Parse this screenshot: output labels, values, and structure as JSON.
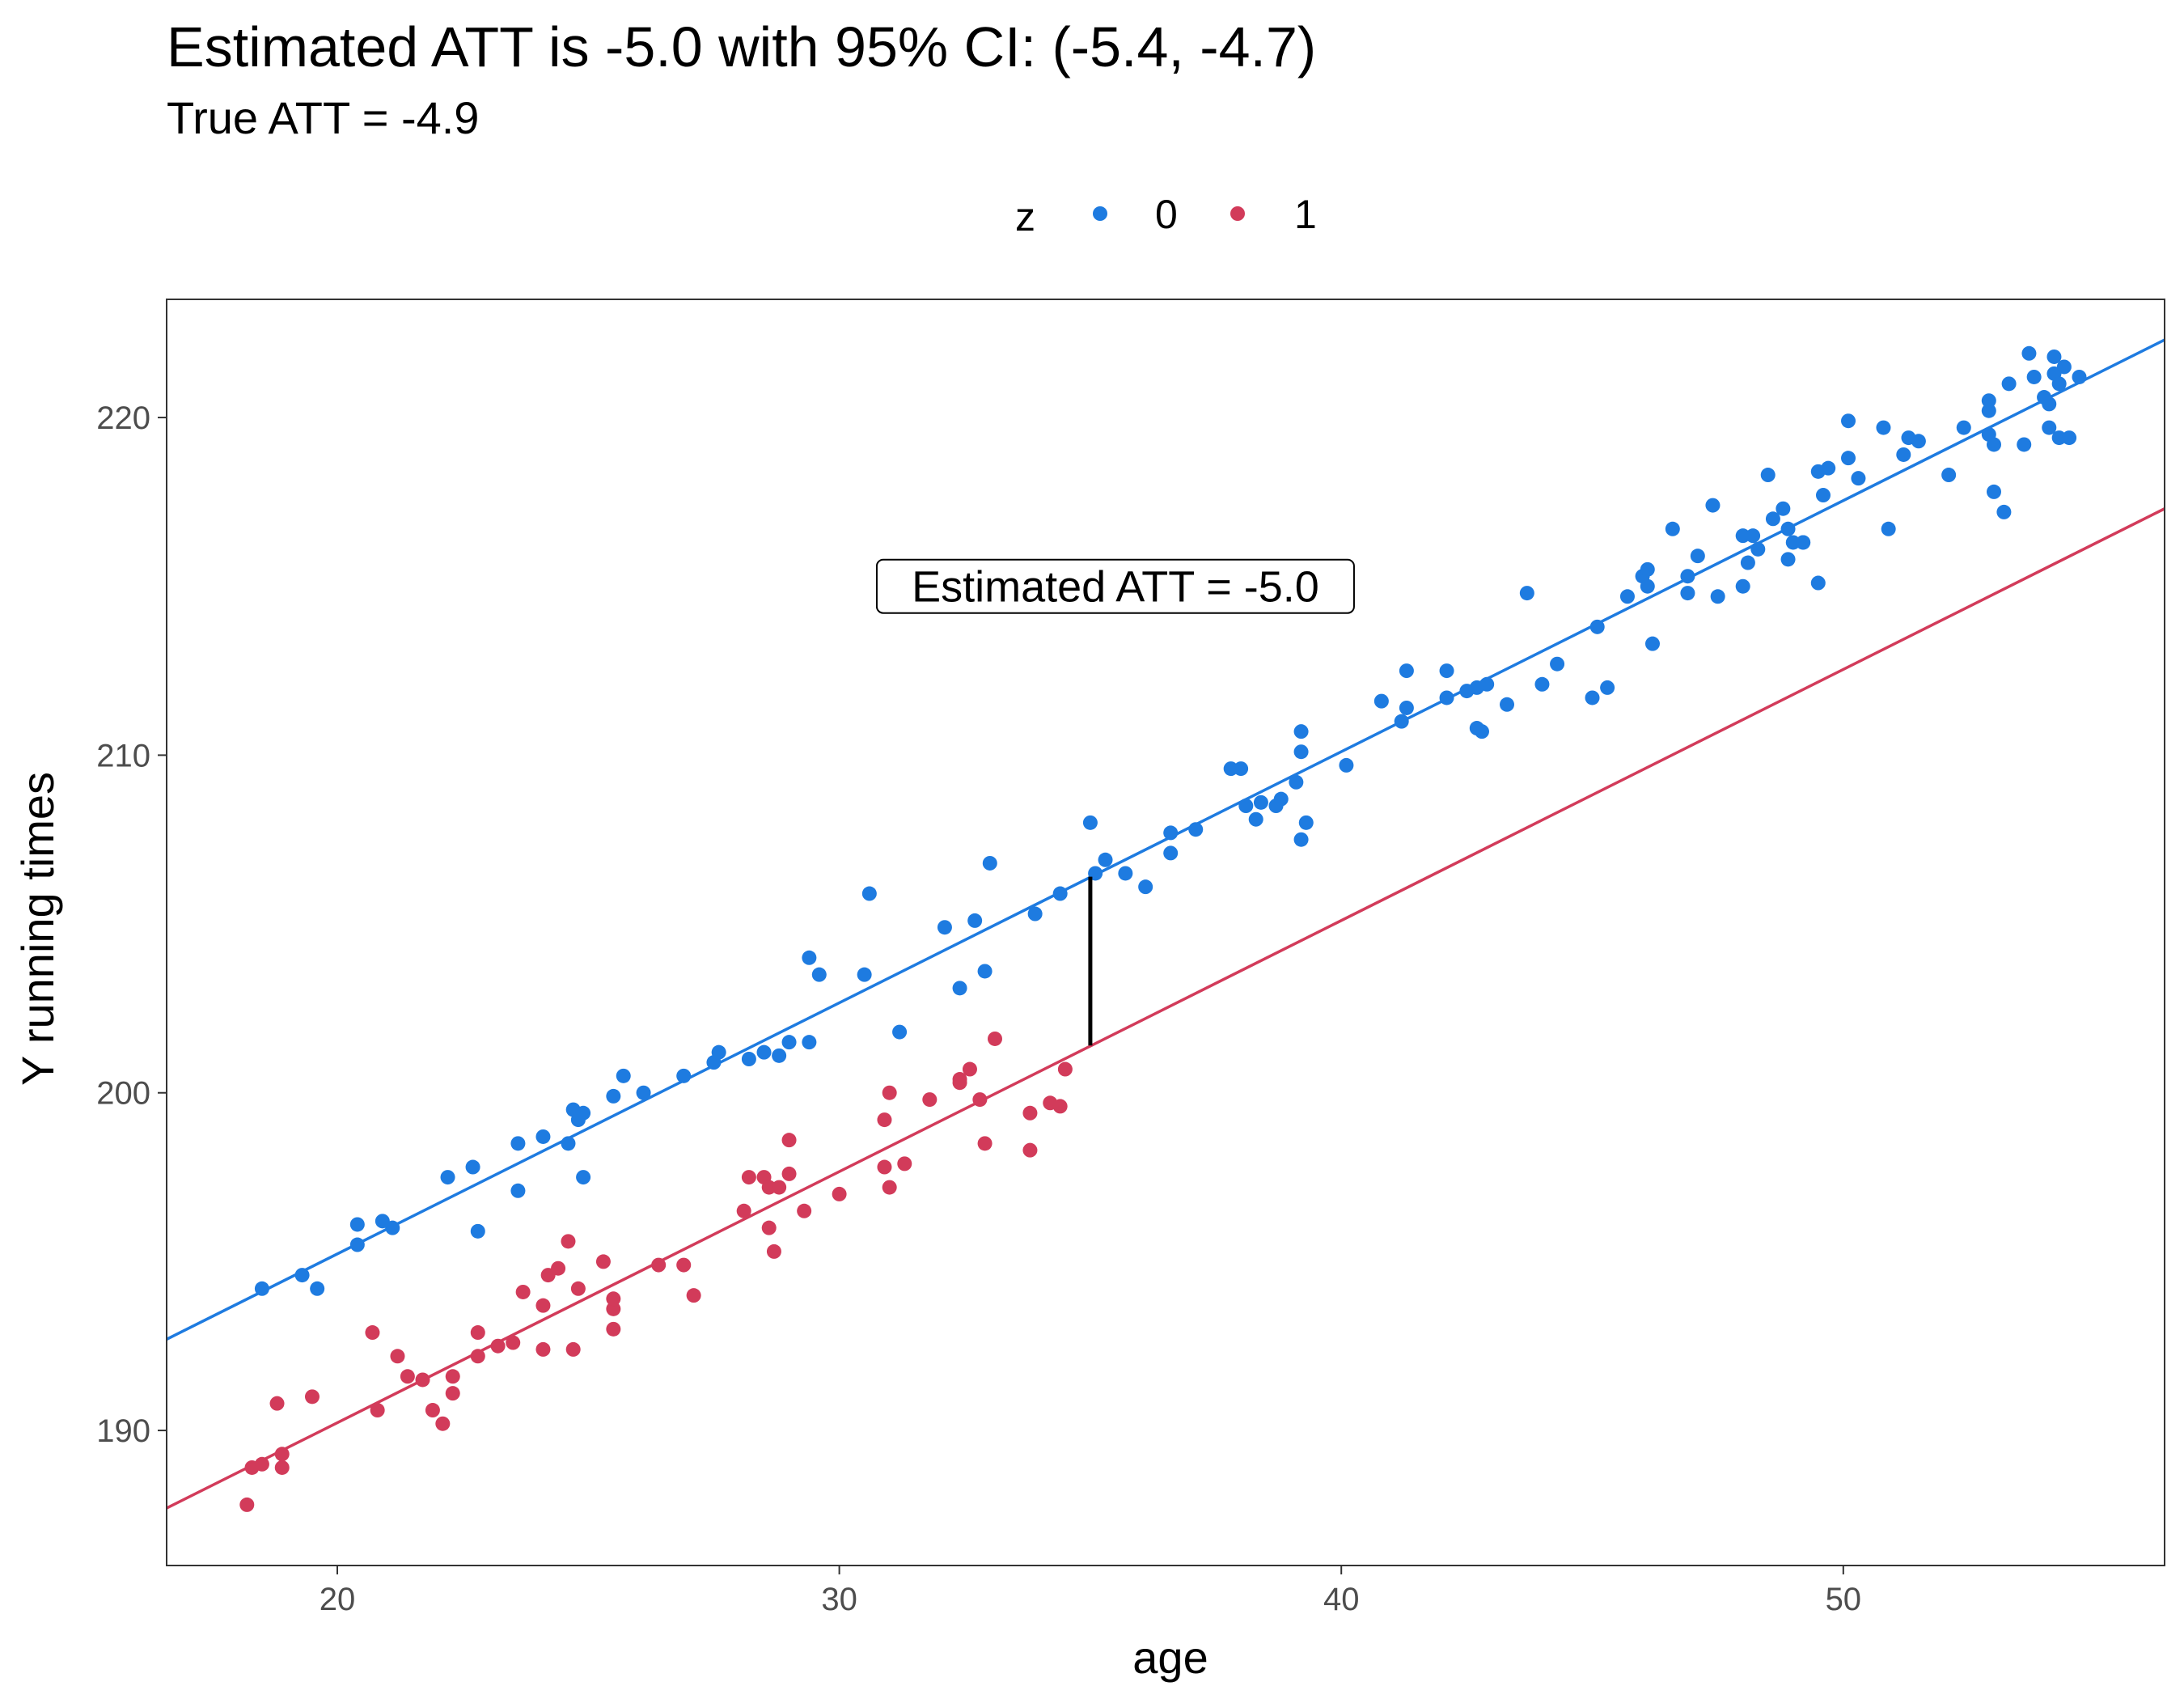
{
  "chart_data": {
    "type": "scatter",
    "title": "Estimated ATT is -5.0 with 95% CI: (-5.4, -4.7)",
    "subtitle": "True ATT = -4.9",
    "xlabel": "age",
    "ylabel": "Y running times",
    "xlim": [
      16.6,
      56.4
    ],
    "ylim": [
      186.0,
      223.5
    ],
    "xticks": [
      20,
      30,
      40,
      50
    ],
    "yticks": [
      190,
      200,
      210,
      220
    ],
    "grid": false,
    "legend": {
      "title": "z",
      "position": "top"
    },
    "series": [
      {
        "name": "0",
        "color": "#1E7BE0",
        "points": [
          [
            18.5,
            194.2
          ],
          [
            19.3,
            194.6
          ],
          [
            19.6,
            194.2
          ],
          [
            20.4,
            195.5
          ],
          [
            20.4,
            196.1
          ],
          [
            20.9,
            196.2
          ],
          [
            21.1,
            196.0
          ],
          [
            22.2,
            197.5
          ],
          [
            22.7,
            197.8
          ],
          [
            22.8,
            195.9
          ],
          [
            23.6,
            198.5
          ],
          [
            23.6,
            197.1
          ],
          [
            24.1,
            198.7
          ],
          [
            24.6,
            198.5
          ],
          [
            24.7,
            199.5
          ],
          [
            24.8,
            199.2
          ],
          [
            24.9,
            199.4
          ],
          [
            24.9,
            197.5
          ],
          [
            25.5,
            199.9
          ],
          [
            25.7,
            200.5
          ],
          [
            26.1,
            200.0
          ],
          [
            26.9,
            200.5
          ],
          [
            27.5,
            200.9
          ],
          [
            27.6,
            201.2
          ],
          [
            28.2,
            201.0
          ],
          [
            28.5,
            201.2
          ],
          [
            28.8,
            201.1
          ],
          [
            29.0,
            201.5
          ],
          [
            29.4,
            201.5
          ],
          [
            29.4,
            204.0
          ],
          [
            29.6,
            203.5
          ],
          [
            30.5,
            203.5
          ],
          [
            30.6,
            205.9
          ],
          [
            31.2,
            201.8
          ],
          [
            32.1,
            204.9
          ],
          [
            32.4,
            203.1
          ],
          [
            32.7,
            205.1
          ],
          [
            32.9,
            203.6
          ],
          [
            33.0,
            206.8
          ],
          [
            33.9,
            205.3
          ],
          [
            34.4,
            205.9
          ],
          [
            35.0,
            208.0
          ],
          [
            35.1,
            206.5
          ],
          [
            35.3,
            206.9
          ],
          [
            35.7,
            206.5
          ],
          [
            36.1,
            206.1
          ],
          [
            36.6,
            207.7
          ],
          [
            36.6,
            207.1
          ],
          [
            37.1,
            207.8
          ],
          [
            37.8,
            209.6
          ],
          [
            38.0,
            209.6
          ],
          [
            38.1,
            208.5
          ],
          [
            38.3,
            208.1
          ],
          [
            38.4,
            208.6
          ],
          [
            38.7,
            208.5
          ],
          [
            38.8,
            208.7
          ],
          [
            39.1,
            209.2
          ],
          [
            39.2,
            210.1
          ],
          [
            39.2,
            210.7
          ],
          [
            39.2,
            207.5
          ],
          [
            39.3,
            208.0
          ],
          [
            40.1,
            209.7
          ],
          [
            40.8,
            211.6
          ],
          [
            41.2,
            211.0
          ],
          [
            41.3,
            211.4
          ],
          [
            41.3,
            212.5
          ],
          [
            42.1,
            212.5
          ],
          [
            42.1,
            211.7
          ],
          [
            42.5,
            211.9
          ],
          [
            42.7,
            212.0
          ],
          [
            42.7,
            210.8
          ],
          [
            42.8,
            210.7
          ],
          [
            42.9,
            212.1
          ],
          [
            43.3,
            211.5
          ],
          [
            43.7,
            214.8
          ],
          [
            44.0,
            212.1
          ],
          [
            44.3,
            212.7
          ],
          [
            45.0,
            211.7
          ],
          [
            45.1,
            213.8
          ],
          [
            45.3,
            212.0
          ],
          [
            45.7,
            214.7
          ],
          [
            46.0,
            215.3
          ],
          [
            46.1,
            215.5
          ],
          [
            46.1,
            215.0
          ],
          [
            46.2,
            213.3
          ],
          [
            46.6,
            216.7
          ],
          [
            46.9,
            215.3
          ],
          [
            46.9,
            214.8
          ],
          [
            47.1,
            215.9
          ],
          [
            47.4,
            217.4
          ],
          [
            47.5,
            214.7
          ],
          [
            48.0,
            215.0
          ],
          [
            48.0,
            216.5
          ],
          [
            48.1,
            215.7
          ],
          [
            48.2,
            216.5
          ],
          [
            48.3,
            216.1
          ],
          [
            48.5,
            218.3
          ],
          [
            48.6,
            217.0
          ],
          [
            48.8,
            217.3
          ],
          [
            48.9,
            216.7
          ],
          [
            48.9,
            215.8
          ],
          [
            49.0,
            216.3
          ],
          [
            49.2,
            216.3
          ],
          [
            49.2,
            216.3
          ],
          [
            49.5,
            218.4
          ],
          [
            49.5,
            215.1
          ],
          [
            49.6,
            217.7
          ],
          [
            49.7,
            218.5
          ],
          [
            50.1,
            219.9
          ],
          [
            50.1,
            218.8
          ],
          [
            50.3,
            218.2
          ],
          [
            50.8,
            219.7
          ],
          [
            50.9,
            216.7
          ],
          [
            51.2,
            218.9
          ],
          [
            51.3,
            219.4
          ],
          [
            51.5,
            219.3
          ],
          [
            52.1,
            218.3
          ],
          [
            52.4,
            219.7
          ],
          [
            52.9,
            220.2
          ],
          [
            52.9,
            220.5
          ],
          [
            52.9,
            219.5
          ],
          [
            53.0,
            219.2
          ],
          [
            53.0,
            217.8
          ],
          [
            53.2,
            217.2
          ],
          [
            53.3,
            221.0
          ],
          [
            53.6,
            219.2
          ],
          [
            53.7,
            221.9
          ],
          [
            53.8,
            221.2
          ],
          [
            54.0,
            220.6
          ],
          [
            54.1,
            220.4
          ],
          [
            54.1,
            219.7
          ],
          [
            54.2,
            221.3
          ],
          [
            54.2,
            221.8
          ],
          [
            54.3,
            221.0
          ],
          [
            54.3,
            219.4
          ],
          [
            54.4,
            221.5
          ],
          [
            54.5,
            219.4
          ],
          [
            54.7,
            221.2
          ]
        ],
        "fit": {
          "x": [
            16.6,
            56.4
          ],
          "y": [
            192.7,
            222.3
          ]
        }
      },
      {
        "name": "1",
        "color": "#D23B5A",
        "points": [
          [
            18.2,
            187.8
          ],
          [
            18.3,
            188.9
          ],
          [
            18.5,
            189.0
          ],
          [
            18.8,
            190.8
          ],
          [
            18.9,
            188.9
          ],
          [
            18.9,
            189.3
          ],
          [
            19.5,
            191.0
          ],
          [
            20.7,
            192.9
          ],
          [
            20.8,
            190.6
          ],
          [
            21.2,
            192.2
          ],
          [
            21.4,
            191.6
          ],
          [
            21.7,
            191.5
          ],
          [
            21.9,
            190.6
          ],
          [
            22.1,
            190.2
          ],
          [
            22.3,
            191.1
          ],
          [
            22.3,
            191.6
          ],
          [
            22.8,
            192.2
          ],
          [
            22.8,
            192.9
          ],
          [
            23.2,
            192.5
          ],
          [
            23.5,
            192.6
          ],
          [
            23.7,
            194.1
          ],
          [
            24.1,
            192.4
          ],
          [
            24.1,
            193.7
          ],
          [
            24.2,
            194.6
          ],
          [
            24.4,
            194.8
          ],
          [
            24.6,
            195.6
          ],
          [
            24.7,
            192.4
          ],
          [
            24.8,
            194.2
          ],
          [
            25.3,
            195.0
          ],
          [
            25.5,
            193.6
          ],
          [
            25.5,
            193.9
          ],
          [
            25.5,
            193.0
          ],
          [
            26.4,
            194.9
          ],
          [
            26.9,
            194.9
          ],
          [
            27.1,
            194.0
          ],
          [
            28.1,
            196.5
          ],
          [
            28.2,
            197.5
          ],
          [
            28.5,
            197.5
          ],
          [
            28.6,
            197.2
          ],
          [
            28.6,
            196.0
          ],
          [
            28.7,
            195.3
          ],
          [
            28.8,
            197.2
          ],
          [
            29.0,
            197.6
          ],
          [
            29.0,
            198.6
          ],
          [
            29.3,
            196.5
          ],
          [
            30.0,
            197.0
          ],
          [
            30.9,
            197.8
          ],
          [
            30.9,
            199.2
          ],
          [
            31.0,
            200.0
          ],
          [
            31.0,
            197.2
          ],
          [
            31.3,
            197.9
          ],
          [
            31.8,
            199.8
          ],
          [
            32.4,
            200.4
          ],
          [
            32.4,
            200.3
          ],
          [
            32.6,
            200.7
          ],
          [
            32.8,
            199.8
          ],
          [
            32.9,
            198.5
          ],
          [
            33.1,
            201.6
          ],
          [
            33.8,
            198.3
          ],
          [
            33.8,
            199.4
          ],
          [
            34.2,
            199.7
          ],
          [
            34.4,
            199.6
          ],
          [
            34.5,
            200.7
          ]
        ],
        "fit": {
          "x": [
            16.6,
            56.4
          ],
          "y": [
            187.7,
            217.3
          ]
        }
      }
    ],
    "annotations": [
      {
        "type": "segment",
        "x": 35.0,
        "y_start": 201.4,
        "y_end": 206.4,
        "color": "#000000"
      },
      {
        "type": "label",
        "text": "Estimated ATT = -5.0",
        "x": 35.5,
        "y": 215.0
      }
    ]
  }
}
